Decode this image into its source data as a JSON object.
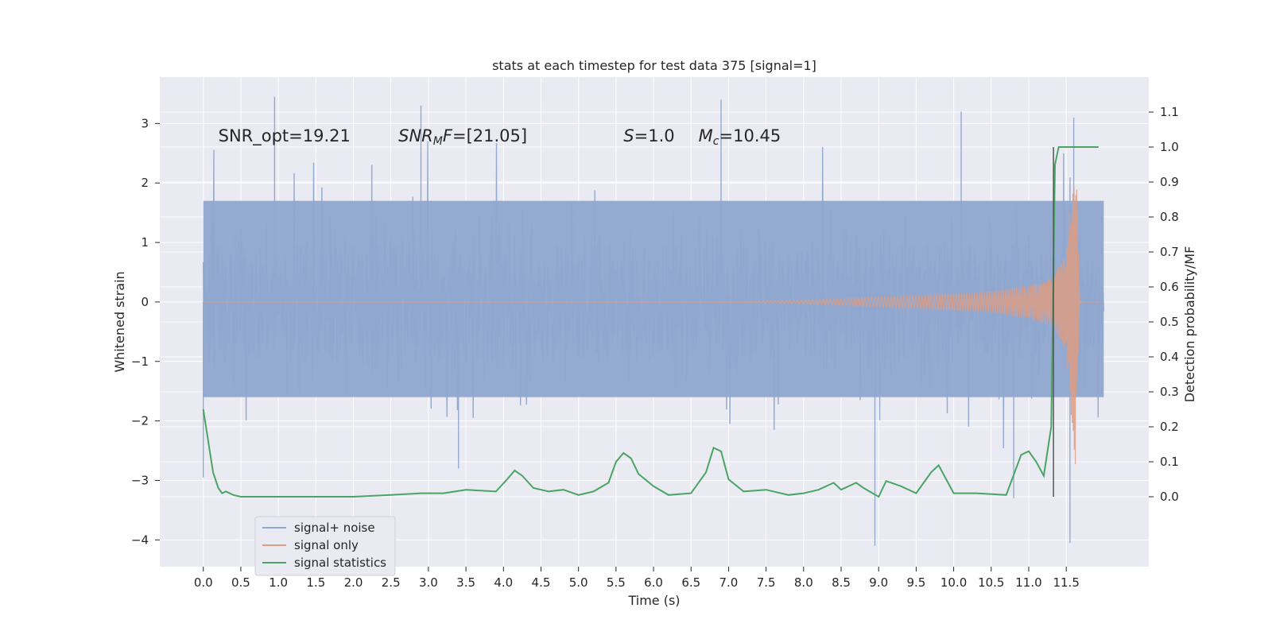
{
  "chart_data": {
    "type": "line",
    "title": "stats at each timestep for test data 375 [signal=1]",
    "xlabel": "Time (s)",
    "ylabel": "Whitened strain",
    "y2label": "Detection probability/MF",
    "xlim": [
      -0.58,
      12.6
    ],
    "ylim": [
      -4.45,
      3.78
    ],
    "y2lim": [
      -0.2,
      1.2
    ],
    "xticks": [
      "0.0",
      "0.5",
      "1.0",
      "1.5",
      "2.0",
      "2.5",
      "3.0",
      "3.5",
      "4.0",
      "4.5",
      "5.0",
      "5.5",
      "6.0",
      "6.5",
      "7.0",
      "7.5",
      "8.0",
      "8.5",
      "9.0",
      "9.5",
      "10.0",
      "10.5",
      "11.0",
      "11.5"
    ],
    "yticks": [
      "−4",
      "−3",
      "−2",
      "−1",
      "0",
      "1",
      "2",
      "3"
    ],
    "y2ticks": [
      "0.0",
      "0.1",
      "0.2",
      "0.3",
      "0.4",
      "0.5",
      "0.6",
      "0.7",
      "0.8",
      "0.9",
      "1.0",
      "1.1"
    ],
    "grid": true,
    "legend_position": "lower-left",
    "annotations": [
      {
        "text": "SNR_opt=19.21",
        "x": 0.2,
        "y": 2.7
      },
      {
        "text": "SNR_MF=[21.05]",
        "x": 2.6,
        "y": 2.7
      },
      {
        "text": "S=1.0",
        "x": 5.6,
        "y": 2.7
      },
      {
        "text": "M_c=10.45",
        "x": 6.6,
        "y": 2.7
      }
    ],
    "vline_x": 11.33,
    "series": [
      {
        "name": "signal+ noise",
        "color": "#8fa6cf",
        "axis": "left",
        "x_range": [
          0.0,
          12.0
        ],
        "envelope_upper": 1.7,
        "envelope_lower": -1.6,
        "spikes": [
          [
            0.95,
            3.45
          ],
          [
            2.9,
            3.3
          ],
          [
            6.9,
            3.4
          ],
          [
            10.1,
            3.2
          ],
          [
            11.6,
            3.1
          ],
          [
            8.95,
            -4.1
          ],
          [
            11.55,
            -4.05
          ],
          [
            10.8,
            -3.3
          ],
          [
            3.4,
            -2.8
          ],
          [
            0.0,
            -2.95
          ]
        ]
      },
      {
        "name": "signal only",
        "color": "#dd9d84",
        "axis": "left",
        "amplitude_t": [
          0.0,
          7.0,
          8.0,
          9.0,
          10.0,
          10.5,
          11.0,
          11.3,
          11.5,
          11.62,
          11.68,
          12.0
        ],
        "amplitude_a": [
          0.0,
          0.005,
          0.03,
          0.08,
          0.14,
          0.18,
          0.28,
          0.4,
          0.8,
          2.8,
          0.05,
          0.0
        ]
      },
      {
        "name": "signal statistics",
        "color": "#4aa564",
        "axis": "right",
        "x": [
          0.0,
          0.13,
          0.2,
          0.25,
          0.3,
          0.4,
          0.5,
          0.6,
          0.8,
          1.0,
          1.5,
          2.0,
          2.5,
          2.9,
          3.2,
          3.5,
          3.9,
          4.05,
          4.15,
          4.25,
          4.4,
          4.6,
          4.8,
          5.0,
          5.2,
          5.4,
          5.5,
          5.6,
          5.7,
          5.8,
          6.0,
          6.2,
          6.5,
          6.7,
          6.8,
          6.9,
          7.0,
          7.2,
          7.5,
          7.8,
          8.0,
          8.2,
          8.4,
          8.5,
          8.7,
          8.8,
          9.0,
          9.1,
          9.3,
          9.5,
          9.7,
          9.8,
          10.0,
          10.3,
          10.7,
          10.9,
          11.0,
          11.1,
          11.2,
          11.3,
          11.35,
          11.4,
          11.45,
          11.5,
          11.93
        ],
        "y": [
          0.25,
          0.07,
          0.025,
          0.01,
          0.015,
          0.005,
          0.0,
          0.0,
          0.0,
          0.0,
          0.0,
          0.0,
          0.005,
          0.01,
          0.01,
          0.02,
          0.015,
          0.05,
          0.075,
          0.06,
          0.025,
          0.015,
          0.02,
          0.005,
          0.015,
          0.04,
          0.1,
          0.125,
          0.11,
          0.065,
          0.03,
          0.005,
          0.01,
          0.07,
          0.14,
          0.13,
          0.05,
          0.015,
          0.02,
          0.005,
          0.01,
          0.02,
          0.04,
          0.02,
          0.04,
          0.025,
          0.0,
          0.045,
          0.03,
          0.01,
          0.07,
          0.09,
          0.01,
          0.01,
          0.005,
          0.12,
          0.13,
          0.1,
          0.06,
          0.2,
          0.95,
          1.0,
          1.0,
          1.0,
          1.0
        ]
      }
    ]
  }
}
